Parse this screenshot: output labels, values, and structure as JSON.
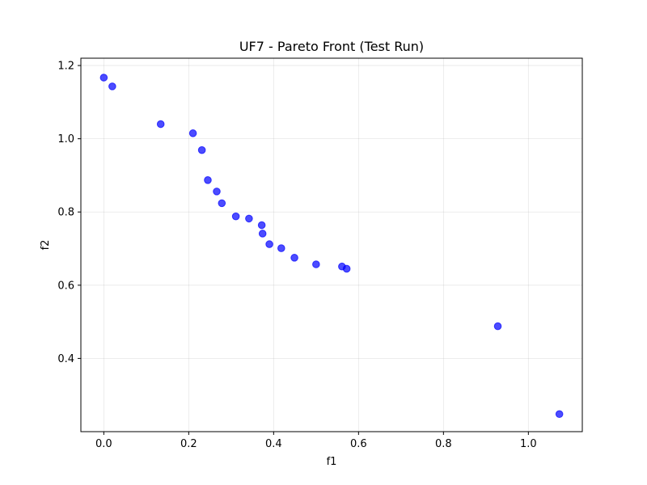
{
  "chart_data": {
    "type": "scatter",
    "title": "UF7 - Pareto Front (Test Run)",
    "xlabel": "f1",
    "ylabel": "f2",
    "xlim": [
      -0.054,
      1.127
    ],
    "ylim": [
      0.2,
      1.22
    ],
    "xticks": [
      "0.0",
      "0.2",
      "0.4",
      "0.6",
      "0.8",
      "1.0"
    ],
    "yticks": [
      "0.4",
      "0.6",
      "0.8",
      "1.0",
      "1.2"
    ],
    "grid": true,
    "marker_color": "#0000ff",
    "marker_alpha": 0.7,
    "points": [
      {
        "x": 0.0,
        "y": 1.167
      },
      {
        "x": 0.02,
        "y": 1.143
      },
      {
        "x": 0.134,
        "y": 1.04
      },
      {
        "x": 0.21,
        "y": 1.015
      },
      {
        "x": 0.231,
        "y": 0.969
      },
      {
        "x": 0.245,
        "y": 0.887
      },
      {
        "x": 0.266,
        "y": 0.856
      },
      {
        "x": 0.278,
        "y": 0.824
      },
      {
        "x": 0.311,
        "y": 0.788
      },
      {
        "x": 0.342,
        "y": 0.782
      },
      {
        "x": 0.372,
        "y": 0.764
      },
      {
        "x": 0.374,
        "y": 0.741
      },
      {
        "x": 0.39,
        "y": 0.712
      },
      {
        "x": 0.418,
        "y": 0.701
      },
      {
        "x": 0.449,
        "y": 0.675
      },
      {
        "x": 0.5,
        "y": 0.657
      },
      {
        "x": 0.561,
        "y": 0.651
      },
      {
        "x": 0.572,
        "y": 0.645
      },
      {
        "x": 0.928,
        "y": 0.488
      },
      {
        "x": 1.073,
        "y": 0.248
      }
    ]
  }
}
